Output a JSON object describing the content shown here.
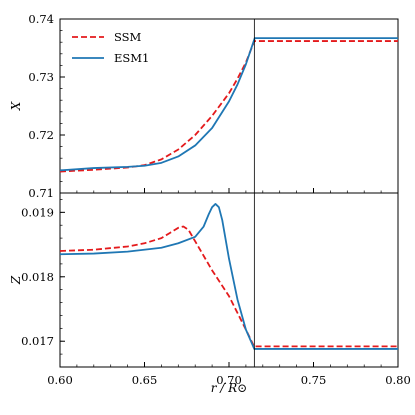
{
  "chart_data": [
    {
      "type": "line",
      "panel": "top",
      "title": "",
      "xlabel": "",
      "ylabel": "X",
      "xlim": [
        0.6,
        0.8
      ],
      "ylim": [
        0.71,
        0.74
      ],
      "yticks": [
        "0.71",
        "0.72",
        "0.73",
        "0.74"
      ],
      "legend": {
        "placement": "top-left",
        "entries": [
          "SSM",
          "ESM1"
        ]
      },
      "vline_x": 0.715,
      "series": [
        {
          "name": "SSM",
          "color": "#e41a1c",
          "style": "dashed",
          "x": [
            0.6,
            0.62,
            0.64,
            0.65,
            0.66,
            0.67,
            0.68,
            0.69,
            0.7,
            0.705,
            0.71,
            0.715,
            0.7152,
            0.8
          ],
          "y": [
            0.7137,
            0.714,
            0.7144,
            0.7148,
            0.7158,
            0.7175,
            0.72,
            0.7233,
            0.7272,
            0.7297,
            0.7325,
            0.7362,
            0.7362,
            0.7362
          ]
        },
        {
          "name": "ESM1",
          "color": "#1f77b4",
          "style": "solid",
          "x": [
            0.6,
            0.62,
            0.64,
            0.65,
            0.66,
            0.67,
            0.68,
            0.69,
            0.7,
            0.705,
            0.71,
            0.715,
            0.7152,
            0.8
          ],
          "y": [
            0.7139,
            0.7143,
            0.7145,
            0.7147,
            0.7152,
            0.7163,
            0.7182,
            0.7212,
            0.7258,
            0.7287,
            0.7322,
            0.7365,
            0.7367,
            0.7367
          ]
        }
      ]
    },
    {
      "type": "line",
      "panel": "bottom",
      "title": "",
      "xlabel": "r / R⊙",
      "ylabel": "Z",
      "xlim": [
        0.6,
        0.8
      ],
      "ylim": [
        0.0166,
        0.0193
      ],
      "xticks": [
        "0.60",
        "0.65",
        "0.70",
        "0.75",
        "0.80"
      ],
      "yticks": [
        "0.017",
        "0.018",
        "0.019"
      ],
      "vline_x": 0.715,
      "series": [
        {
          "name": "SSM",
          "color": "#e41a1c",
          "style": "dashed",
          "x": [
            0.6,
            0.62,
            0.64,
            0.65,
            0.66,
            0.665,
            0.67,
            0.673,
            0.676,
            0.68,
            0.69,
            0.7,
            0.71,
            0.715,
            0.7152,
            0.8
          ],
          "y": [
            0.0184,
            0.01842,
            0.01847,
            0.01852,
            0.0186,
            0.01868,
            0.01876,
            0.01878,
            0.01873,
            0.01855,
            0.0181,
            0.0177,
            0.01718,
            0.01691,
            0.01692,
            0.01692
          ]
        },
        {
          "name": "ESM1",
          "color": "#1f77b4",
          "style": "solid",
          "x": [
            0.6,
            0.62,
            0.64,
            0.66,
            0.67,
            0.68,
            0.685,
            0.688,
            0.69,
            0.692,
            0.694,
            0.696,
            0.7,
            0.705,
            0.71,
            0.715,
            0.7152,
            0.8
          ],
          "y": [
            0.01835,
            0.01836,
            0.01839,
            0.01845,
            0.01852,
            0.01862,
            0.01878,
            0.01897,
            0.01908,
            0.01913,
            0.01908,
            0.01888,
            0.01828,
            0.01765,
            0.01718,
            0.01688,
            0.01688,
            0.01688
          ]
        }
      ]
    }
  ]
}
